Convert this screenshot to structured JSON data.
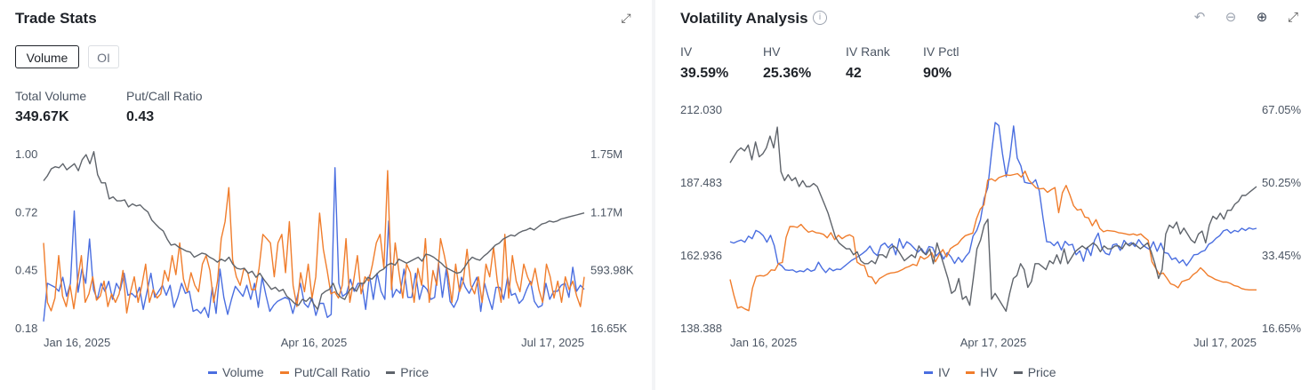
{
  "colors": {
    "volume": "#4a6ee0",
    "putcall": "#f07d2c",
    "price": "#5f646b",
    "iv": "#4a6ee0",
    "hv": "#f07d2c"
  },
  "trade_stats": {
    "title": "Trade Stats",
    "tabs": [
      "Volume",
      "OI"
    ],
    "active_tab": "Volume",
    "total_volume_label": "Total Volume",
    "total_volume_value": "349.67K",
    "pcr_label": "Put/Call Ratio",
    "pcr_value": "0.43",
    "expand_icon": "expand-icon"
  },
  "volatility": {
    "title": "Volatility Analysis",
    "info_icon": "info-icon",
    "tool_icons": [
      "undo-icon",
      "zoom-out-icon",
      "zoom-in-icon",
      "expand-icon"
    ],
    "stats": [
      {
        "label": "IV",
        "value": "39.59%"
      },
      {
        "label": "HV",
        "value": "25.36%"
      },
      {
        "label": "IV Rank",
        "value": "42"
      },
      {
        "label": "IV Pctl",
        "value": "90%"
      }
    ]
  },
  "chart_data": [
    {
      "type": "line",
      "legend_placement": "bottom-center",
      "grid": false,
      "x_ticks": [
        "Jan 16, 2025",
        "Apr 16, 2025",
        "Jul 17, 2025"
      ],
      "y_left_ticks": [
        "1.00",
        "0.72",
        "0.45",
        "0.18"
      ],
      "y_right_ticks": [
        "1.75M",
        "1.17M",
        "593.98K",
        "16.65K"
      ],
      "y_left_range": [
        0.18,
        1.0
      ],
      "y_right_range": [
        16650,
        1750000
      ],
      "series": [
        {
          "name": "Volume",
          "axis": "right",
          "color": "#4a6ee0",
          "values": [
            80000,
            460000,
            440000,
            420000,
            380000,
            520000,
            330000,
            460000,
            1180000,
            370000,
            600000,
            460000,
            900000,
            400000,
            300000,
            460000,
            380000,
            480000,
            300000,
            460000,
            390000,
            560000,
            340000,
            360000,
            320000,
            420000,
            200000,
            380000,
            560000,
            320000,
            380000,
            440000,
            340000,
            440000,
            220000,
            320000,
            460000,
            360000,
            380000,
            180000,
            200000,
            160000,
            220000,
            120000,
            420000,
            160000,
            600000,
            320000,
            150000,
            300000,
            430000,
            380000,
            330000,
            440000,
            300000,
            460000,
            220000,
            520000,
            340000,
            180000,
            240000,
            280000,
            300000,
            320000,
            300000,
            160000,
            300000,
            460000,
            260000,
            220000,
            320000,
            140000,
            260000,
            260000,
            120000,
            150000,
            1610000,
            460000,
            330000,
            360000,
            500000,
            380000,
            460000,
            460000,
            200000,
            540000,
            300000,
            560000,
            380000,
            300000,
            1080000,
            320000,
            400000,
            360000,
            600000,
            320000,
            320000,
            560000,
            300000,
            440000,
            400000,
            300000,
            320000,
            660000,
            320000,
            600000,
            280000,
            220000,
            300000,
            520000,
            420000,
            360000,
            440000,
            520000,
            180000,
            460000,
            320000,
            200000,
            420000,
            420000,
            300000,
            520000,
            340000,
            360000,
            260000,
            300000,
            400000,
            480000,
            280000,
            220000,
            240000,
            460000,
            300000,
            380000,
            380000,
            440000,
            460000,
            320000,
            620000,
            380000,
            440000,
            400000
          ]
        },
        {
          "name": "Put/Call Ratio",
          "axis": "left",
          "color": "#f07d2c",
          "values": [
            0.58,
            0.3,
            0.26,
            0.32,
            0.52,
            0.33,
            0.28,
            0.38,
            0.27,
            0.4,
            0.52,
            0.3,
            0.34,
            0.42,
            0.31,
            0.33,
            0.4,
            0.28,
            0.34,
            0.3,
            0.34,
            0.45,
            0.25,
            0.35,
            0.42,
            0.3,
            0.38,
            0.48,
            0.3,
            0.36,
            0.32,
            0.34,
            0.45,
            0.4,
            0.52,
            0.43,
            0.58,
            0.41,
            0.35,
            0.44,
            0.38,
            0.35,
            0.48,
            0.52,
            0.45,
            0.3,
            0.4,
            0.6,
            0.68,
            0.84,
            0.5,
            0.42,
            0.38,
            0.46,
            0.44,
            0.36,
            0.36,
            0.46,
            0.62,
            0.6,
            0.58,
            0.42,
            0.58,
            0.62,
            0.44,
            0.68,
            0.38,
            0.28,
            0.44,
            0.35,
            0.48,
            0.32,
            0.42,
            0.72,
            0.55,
            0.45,
            0.34,
            0.35,
            0.32,
            0.38,
            0.6,
            0.3,
            0.4,
            0.52,
            0.34,
            0.42,
            0.4,
            0.48,
            0.58,
            0.62,
            0.46,
            0.92,
            0.36,
            0.58,
            0.44,
            0.32,
            0.48,
            0.44,
            0.3,
            0.46,
            0.38,
            0.6,
            0.3,
            0.45,
            0.38,
            0.6,
            0.52,
            0.43,
            0.3,
            0.48,
            0.35,
            0.4,
            0.55,
            0.38,
            0.34,
            0.42,
            0.3,
            0.48,
            0.42,
            0.56,
            0.4,
            0.3,
            0.62,
            0.32,
            0.52,
            0.4,
            0.35,
            0.48,
            0.42,
            0.38,
            0.46,
            0.36,
            0.3,
            0.48,
            0.42,
            0.32,
            0.4,
            0.3,
            0.42,
            0.36,
            0.4,
            0.33,
            0.28,
            0.42
          ]
        },
        {
          "name": "Price",
          "axis": "right",
          "color": "#5f646b",
          "values": [
            1480000,
            1530000,
            1600000,
            1620000,
            1610000,
            1650000,
            1590000,
            1620000,
            1650000,
            1580000,
            1690000,
            1740000,
            1650000,
            1770000,
            1540000,
            1460000,
            1460000,
            1300000,
            1320000,
            1280000,
            1280000,
            1290000,
            1220000,
            1250000,
            1230000,
            1240000,
            1200000,
            1170000,
            1090000,
            1050000,
            1010000,
            980000,
            900000,
            840000,
            850000,
            820000,
            800000,
            780000,
            770000,
            720000,
            740000,
            760000,
            750000,
            720000,
            700000,
            670000,
            700000,
            680000,
            720000,
            650000,
            610000,
            600000,
            610000,
            560000,
            580000,
            520000,
            560000,
            500000,
            450000,
            400000,
            420000,
            380000,
            400000,
            330000,
            300000,
            260000,
            240000,
            300000,
            280000,
            320000,
            250000,
            200000,
            350000,
            380000,
            400000,
            460000,
            360000,
            320000,
            300000,
            380000,
            420000,
            380000,
            460000,
            460000,
            520000,
            500000,
            540000,
            580000,
            600000,
            640000,
            660000,
            640000,
            700000,
            680000,
            660000,
            680000,
            700000,
            720000,
            680000,
            750000,
            740000,
            720000,
            690000,
            660000,
            620000,
            600000,
            580000,
            560000,
            570000,
            620000,
            680000,
            720000,
            700000,
            690000,
            730000,
            760000,
            800000,
            840000,
            860000,
            900000,
            920000,
            940000,
            930000,
            960000,
            980000,
            990000,
            1010000,
            990000,
            1020000,
            1050000,
            1060000,
            1080000,
            1070000,
            1080000,
            1100000,
            1110000,
            1120000,
            1130000,
            1140000,
            1150000,
            1160000
          ]
        }
      ]
    },
    {
      "type": "line",
      "legend_placement": "bottom-center",
      "grid": false,
      "x_ticks": [
        "Jan 16, 2025",
        "Apr 17, 2025",
        "Jul 17, 2025"
      ],
      "y_left_ticks": [
        "212.030",
        "187.483",
        "162.936",
        "138.388"
      ],
      "y_right_ticks": [
        "67.05%",
        "50.25%",
        "33.45%",
        "16.65%"
      ],
      "y_left_range": [
        138.388,
        212.03
      ],
      "y_right_range": [
        16.65,
        67.05
      ],
      "series": [
        {
          "name": "IV",
          "axis": "right",
          "color": "#4a6ee0",
          "values": [
            36.5,
            36.2,
            36.6,
            36.9,
            36.4,
            37.8,
            37.2,
            39.1,
            38.7,
            37.9,
            36.4,
            38.0,
            35.6,
            31.5,
            31.0,
            30.0,
            29.9,
            30.0,
            29.5,
            29.8,
            29.6,
            30.3,
            29.7,
            30.0,
            31.8,
            30.4,
            29.4,
            30.4,
            29.8,
            30.2,
            30.1,
            30.8,
            31.5,
            32.2,
            32.7,
            33.2,
            33.8,
            34.5,
            35.5,
            34.0,
            33.3,
            35.6,
            36.2,
            35.1,
            36.0,
            33.5,
            37.2,
            35.0,
            36.5,
            35.9,
            35.0,
            34.1,
            34.9,
            33.6,
            35.4,
            35.2,
            33.2,
            34.2,
            32.5,
            34.0,
            33.0,
            31.5,
            32.9,
            31.8,
            33.1,
            34.1,
            37.8,
            39.1,
            41.5,
            46.5,
            49.0,
            56.8,
            64.0,
            63.3,
            56.8,
            51.5,
            56.0,
            63.2,
            55.8,
            54.0,
            50.2,
            50.0,
            49.9,
            50.8,
            48.2,
            42.0,
            36.5,
            36.4,
            35.6,
            36.5,
            34.6,
            36.6,
            35.7,
            35.9,
            33.5,
            34.4,
            32.0,
            35.2,
            33.3,
            36.8,
            38.5,
            35.0,
            33.8,
            33.5,
            35.8,
            36.0,
            34.5,
            36.8,
            35.8,
            36.3,
            35.4,
            37.0,
            35.8,
            35.2,
            34.7,
            36.5,
            34.3,
            36.2,
            34.0,
            33.8,
            32.4,
            32.8,
            31.6,
            32.3,
            31.0,
            32.2,
            33.5,
            33.6,
            34.2,
            34.5,
            35.9,
            36.4,
            37.3,
            37.9,
            39.0,
            39.3,
            38.5,
            39.1,
            38.8,
            39.6,
            39.1,
            39.7,
            39.4,
            39.6
          ]
        },
        {
          "name": "HV",
          "axis": "right",
          "color": "#f07d2c",
          "values": [
            27.8,
            24.2,
            21.2,
            21.5,
            21.0,
            20.6,
            25.8,
            28.5,
            28.7,
            28.6,
            29.0,
            30.0,
            29.9,
            31.5,
            31.7,
            37.5,
            40.0,
            40.0,
            39.8,
            40.5,
            39.5,
            38.7,
            39.0,
            38.6,
            38.5,
            38.2,
            37.4,
            38.6,
            37.0,
            38.0,
            37.2,
            37.8,
            38.1,
            37.6,
            31.8,
            31.2,
            31.0,
            28.5,
            28.3,
            26.8,
            28.0,
            28.5,
            29.0,
            29.3,
            29.4,
            29.6,
            30.0,
            30.5,
            30.8,
            31.3,
            31.0,
            33.1,
            32.5,
            33.0,
            34.0,
            31.9,
            33.5,
            34.7,
            33.0,
            34.9,
            35.5,
            36.0,
            37.1,
            37.9,
            38.2,
            38.5,
            41.8,
            44.0,
            45.0,
            50.7,
            51.0,
            50.5,
            51.3,
            51.6,
            51.9,
            51.8,
            52.0,
            52.2,
            51.4,
            52.8,
            50.7,
            49.8,
            48.9,
            48.7,
            48.8,
            47.9,
            48.5,
            49.0,
            43.2,
            47.8,
            49.5,
            47.3,
            44.8,
            43.8,
            44.0,
            42.2,
            42.0,
            40.2,
            41.6,
            39.6,
            38.8,
            39.1,
            39.0,
            38.9,
            38.6,
            38.5,
            38.3,
            38.1,
            38.3,
            38.0,
            38.3,
            37.5,
            36.8,
            31.9,
            30.4,
            29.0,
            29.3,
            28.1,
            26.8,
            26.5,
            25.9,
            27.3,
            27.6,
            27.9,
            28.9,
            29.5,
            30.5,
            29.7,
            28.7,
            28.3,
            27.8,
            27.5,
            27.2,
            27.2,
            26.9,
            26.4,
            26.2,
            25.7,
            25.5,
            25.4,
            25.4,
            25.4
          ]
        },
        {
          "name": "Price",
          "axis": "left",
          "color": "#5f646b",
          "values": [
            194,
            196,
            198,
            199,
            198,
            200,
            195,
            201,
            196,
            197,
            199,
            203,
            199,
            206,
            191,
            188,
            190,
            188,
            189,
            186,
            188,
            186,
            186,
            187,
            186,
            183,
            180,
            177,
            173,
            169,
            167,
            166,
            165,
            165,
            163,
            164,
            161,
            160,
            160,
            161,
            160,
            163,
            163,
            162,
            165,
            166,
            165,
            163,
            161,
            162,
            163,
            162,
            166,
            164,
            163,
            165,
            160,
            167,
            163,
            159,
            155,
            150,
            151,
            155,
            148,
            149,
            146,
            155,
            165,
            168,
            173,
            175,
            148,
            150,
            148,
            146,
            144,
            150,
            155,
            156,
            160,
            158,
            152,
            154,
            160,
            160,
            159,
            158,
            161,
            160,
            163,
            160,
            165,
            160,
            162,
            164,
            165,
            166,
            165,
            166,
            167,
            166,
            164,
            166,
            165,
            165,
            166,
            166,
            165,
            167,
            166,
            167,
            166,
            165,
            166,
            167,
            164,
            160,
            155,
            158,
            170,
            173,
            172,
            174,
            170,
            172,
            170,
            168,
            167,
            170,
            171,
            167,
            173,
            176,
            175,
            177,
            175,
            178,
            178,
            180,
            181,
            183,
            183,
            184,
            185,
            186
          ]
        }
      ]
    }
  ]
}
